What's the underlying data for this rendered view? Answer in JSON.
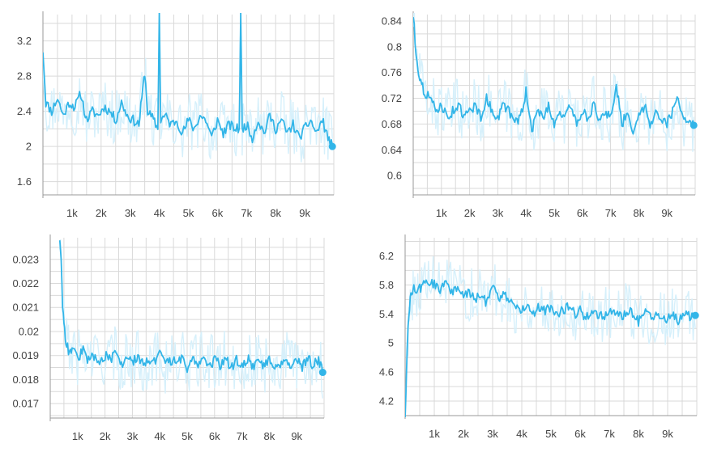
{
  "chart_data": [
    {
      "type": "line",
      "title": "",
      "xlabel": "",
      "ylabel": "",
      "xlim": [
        0,
        10000
      ],
      "ylim": [
        1.45,
        3.5
      ],
      "x_ticks": [
        1000,
        2000,
        3000,
        4000,
        5000,
        6000,
        7000,
        8000,
        9000
      ],
      "x_tick_labels": [
        "1k",
        "2k",
        "3k",
        "4k",
        "5k",
        "6k",
        "7k",
        "8k",
        "9k"
      ],
      "y_ticks": [
        1.6,
        2.0,
        2.4,
        2.8,
        3.2
      ],
      "y_tick_labels": [
        "1.6",
        "2",
        "2.4",
        "2.8",
        "3.2"
      ],
      "grid": true,
      "series": [
        {
          "color": "#32b5e8",
          "raw_color": "#d6f0fb",
          "x": [
            0,
            100,
            300,
            500,
            700,
            900,
            1100,
            1300,
            1500,
            1700,
            1900,
            2100,
            2300,
            2500,
            2700,
            2900,
            3100,
            3300,
            3400,
            3500,
            3600,
            3800,
            3950,
            4000,
            4050,
            4200,
            4400,
            4600,
            4800,
            5000,
            5200,
            5400,
            5600,
            5800,
            6000,
            6200,
            6400,
            6600,
            6750,
            6800,
            6850,
            7000,
            7200,
            7400,
            7600,
            7800,
            8000,
            8200,
            8400,
            8600,
            8800,
            9000,
            9200,
            9400,
            9600,
            9800,
            9950
          ],
          "y": [
            3.1,
            2.5,
            2.4,
            2.55,
            2.35,
            2.5,
            2.45,
            2.6,
            2.3,
            2.4,
            2.35,
            2.45,
            2.4,
            2.3,
            2.5,
            2.35,
            2.3,
            2.25,
            2.55,
            2.85,
            2.4,
            2.3,
            2.2,
            3.5,
            2.3,
            2.35,
            2.25,
            2.3,
            2.15,
            2.3,
            2.2,
            2.35,
            2.3,
            2.1,
            2.3,
            2.15,
            2.25,
            2.2,
            2.2,
            3.5,
            2.2,
            2.25,
            2.1,
            2.3,
            2.15,
            2.35,
            2.2,
            2.3,
            2.15,
            2.25,
            2.1,
            2.2,
            2.3,
            2.15,
            2.3,
            2.1,
            2.0
          ]
        }
      ]
    },
    {
      "type": "line",
      "title": "",
      "xlabel": "",
      "ylabel": "",
      "xlim": [
        0,
        10000
      ],
      "ylim": [
        0.57,
        0.85
      ],
      "x_ticks": [
        1000,
        2000,
        3000,
        4000,
        5000,
        6000,
        7000,
        8000,
        9000
      ],
      "x_tick_labels": [
        "1k",
        "2k",
        "3k",
        "4k",
        "5k",
        "6k",
        "7k",
        "8k",
        "9k"
      ],
      "y_ticks": [
        0.6,
        0.64,
        0.68,
        0.72,
        0.76,
        0.8,
        0.84
      ],
      "y_tick_labels": [
        "0.6",
        "0.64",
        "0.68",
        "0.72",
        "0.76",
        "0.8",
        "0.84"
      ],
      "grid": true,
      "series": [
        {
          "color": "#32b5e8",
          "raw_color": "#d6f0fb",
          "x": [
            0,
            100,
            200,
            300,
            400,
            600,
            800,
            1000,
            1200,
            1400,
            1600,
            1800,
            2000,
            2200,
            2400,
            2600,
            2800,
            3000,
            3200,
            3400,
            3600,
            3800,
            4000,
            4200,
            4400,
            4600,
            4800,
            5000,
            5200,
            5400,
            5600,
            5800,
            6000,
            6200,
            6400,
            6600,
            6800,
            7000,
            7200,
            7400,
            7600,
            7800,
            8000,
            8200,
            8400,
            8600,
            8800,
            9000,
            9200,
            9400,
            9600,
            9800,
            9950
          ],
          "y": [
            0.85,
            0.79,
            0.76,
            0.74,
            0.73,
            0.72,
            0.7,
            0.71,
            0.69,
            0.7,
            0.71,
            0.69,
            0.7,
            0.71,
            0.69,
            0.72,
            0.7,
            0.69,
            0.71,
            0.7,
            0.68,
            0.69,
            0.73,
            0.67,
            0.7,
            0.69,
            0.71,
            0.68,
            0.7,
            0.69,
            0.71,
            0.68,
            0.7,
            0.69,
            0.71,
            0.68,
            0.7,
            0.69,
            0.74,
            0.68,
            0.7,
            0.67,
            0.69,
            0.71,
            0.68,
            0.7,
            0.69,
            0.68,
            0.7,
            0.72,
            0.69,
            0.68,
            0.678
          ]
        }
      ]
    },
    {
      "type": "line",
      "title": "",
      "xlabel": "",
      "ylabel": "",
      "xlim": [
        0,
        10000
      ],
      "ylim": [
        0.0164,
        0.0239
      ],
      "x_ticks": [
        1000,
        2000,
        3000,
        4000,
        5000,
        6000,
        7000,
        8000,
        9000
      ],
      "x_tick_labels": [
        "1k",
        "2k",
        "3k",
        "4k",
        "5k",
        "6k",
        "7k",
        "8k",
        "9k"
      ],
      "y_ticks": [
        0.017,
        0.018,
        0.019,
        0.02,
        0.021,
        0.022,
        0.023
      ],
      "y_tick_labels": [
        "0.017",
        "0.018",
        "0.019",
        "0.02",
        "0.021",
        "0.022",
        "0.023"
      ],
      "grid": true,
      "series": [
        {
          "color": "#32b5e8",
          "raw_color": "#d6f0fb",
          "x": [
            350,
            400,
            450,
            500,
            550,
            600,
            700,
            800,
            1000,
            1200,
            1400,
            1600,
            1800,
            2000,
            2200,
            2400,
            2600,
            2800,
            3000,
            3200,
            3400,
            3600,
            3800,
            4000,
            4200,
            4400,
            4600,
            4800,
            5000,
            5200,
            5400,
            5600,
            5800,
            6000,
            6200,
            6400,
            6600,
            6800,
            7000,
            7200,
            7400,
            7600,
            7800,
            8000,
            8200,
            8400,
            8600,
            8800,
            9000,
            9200,
            9400,
            9600,
            9800,
            9950
          ],
          "y": [
            0.0239,
            0.0228,
            0.0212,
            0.0205,
            0.0198,
            0.0195,
            0.0191,
            0.0193,
            0.0189,
            0.0192,
            0.0188,
            0.019,
            0.0187,
            0.019,
            0.0188,
            0.0191,
            0.0186,
            0.0189,
            0.0187,
            0.019,
            0.0186,
            0.0189,
            0.0187,
            0.0191,
            0.0186,
            0.0188,
            0.0187,
            0.0189,
            0.0185,
            0.0188,
            0.0187,
            0.0189,
            0.0186,
            0.0188,
            0.0186,
            0.0189,
            0.0185,
            0.0188,
            0.0186,
            0.0189,
            0.0185,
            0.0188,
            0.0186,
            0.0189,
            0.0185,
            0.0187,
            0.0189,
            0.0186,
            0.0188,
            0.0185,
            0.0189,
            0.0186,
            0.0188,
            0.0183
          ]
        }
      ]
    },
    {
      "type": "line",
      "title": "",
      "xlabel": "",
      "ylabel": "",
      "xlim": [
        0,
        10000
      ],
      "ylim": [
        4.0,
        6.45
      ],
      "x_ticks": [
        1000,
        2000,
        3000,
        4000,
        5000,
        6000,
        7000,
        8000,
        9000
      ],
      "x_tick_labels": [
        "1k",
        "2k",
        "3k",
        "4k",
        "5k",
        "6k",
        "7k",
        "8k",
        "9k"
      ],
      "y_ticks": [
        4.2,
        4.6,
        5.0,
        5.4,
        5.8,
        6.2
      ],
      "y_tick_labels": [
        "4.2",
        "4.6",
        "5",
        "5.4",
        "5.8",
        "6.2"
      ],
      "grid": true,
      "series": [
        {
          "color": "#32b5e8",
          "raw_color": "#d6f0fb",
          "x": [
            0,
            50,
            100,
            150,
            200,
            250,
            300,
            400,
            500,
            600,
            800,
            1000,
            1200,
            1400,
            1600,
            1800,
            2000,
            2200,
            2400,
            2600,
            2800,
            3000,
            3200,
            3400,
            3600,
            3800,
            4000,
            4200,
            4400,
            4600,
            4800,
            5000,
            5200,
            5400,
            5600,
            5800,
            6000,
            6200,
            6400,
            6600,
            6800,
            7000,
            7200,
            7400,
            7600,
            7800,
            8000,
            8200,
            8400,
            8600,
            8800,
            9000,
            9200,
            9400,
            9600,
            9800,
            9950
          ],
          "y": [
            4.0,
            4.6,
            5.2,
            5.5,
            5.65,
            5.7,
            5.75,
            5.7,
            5.75,
            5.8,
            5.85,
            5.8,
            5.75,
            5.85,
            5.7,
            5.75,
            5.65,
            5.7,
            5.6,
            5.65,
            5.55,
            5.85,
            5.6,
            5.7,
            5.55,
            5.5,
            5.45,
            5.55,
            5.4,
            5.5,
            5.45,
            5.5,
            5.4,
            5.45,
            5.5,
            5.4,
            5.45,
            5.35,
            5.45,
            5.4,
            5.35,
            5.45,
            5.4,
            5.35,
            5.45,
            5.4,
            5.3,
            5.45,
            5.35,
            5.4,
            5.3,
            5.35,
            5.4,
            5.3,
            5.45,
            5.35,
            5.38
          ]
        }
      ]
    }
  ]
}
